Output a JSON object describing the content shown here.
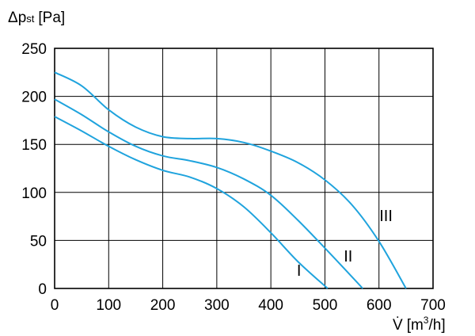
{
  "chart_data": {
    "type": "line",
    "title": "",
    "ylabel": {
      "main": "Δp",
      "sub": "st",
      "unit": "[Pa]"
    },
    "xlabel": {
      "main": "V̇",
      "unit_pre": "[m",
      "unit_sup": "3",
      "unit_post": "/h]"
    },
    "xlim": [
      0,
      700
    ],
    "ylim": [
      0,
      250
    ],
    "x_ticks": [
      0,
      100,
      200,
      300,
      400,
      500,
      600,
      700
    ],
    "y_ticks": [
      0,
      50,
      100,
      150,
      200,
      250
    ],
    "grid": true,
    "line_color": "#1fa3dd",
    "series": [
      {
        "name": "I",
        "x": [
          0,
          50,
          100,
          150,
          200,
          250,
          300,
          350,
          400,
          450,
          505
        ],
        "y": [
          179,
          164,
          148,
          134,
          123,
          116,
          104,
          85,
          58,
          28,
          0
        ]
      },
      {
        "name": "II",
        "x": [
          0,
          50,
          100,
          150,
          200,
          250,
          300,
          350,
          400,
          450,
          500,
          570
        ],
        "y": [
          197,
          181,
          163,
          148,
          138,
          133,
          126,
          114,
          97,
          71,
          42,
          0
        ]
      },
      {
        "name": "III",
        "x": [
          0,
          50,
          100,
          150,
          200,
          250,
          300,
          350,
          400,
          450,
          500,
          550,
          600,
          650
        ],
        "y": [
          225,
          211,
          186,
          168,
          158,
          156,
          156,
          152,
          143,
          131,
          113,
          87,
          49,
          0
        ]
      }
    ],
    "curve_labels": [
      {
        "text": "I",
        "x": 452,
        "y": 13
      },
      {
        "text": "II",
        "x": 543,
        "y": 28
      },
      {
        "text": "III",
        "x": 613,
        "y": 70
      }
    ]
  }
}
